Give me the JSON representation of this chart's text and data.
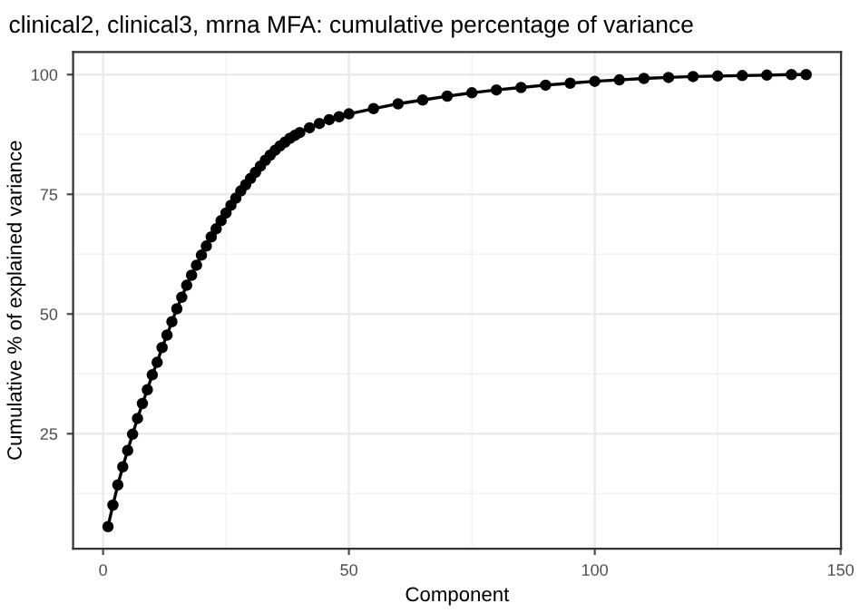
{
  "chart_data": {
    "type": "line",
    "title": "clinical2, clinical3, mrna MFA: cumulative percentage of variance",
    "xlabel": "Component",
    "ylabel": "Cumulative % of explained variance",
    "x": [
      1,
      2,
      3,
      4,
      5,
      6,
      7,
      8,
      9,
      10,
      11,
      12,
      13,
      14,
      15,
      16,
      17,
      18,
      19,
      20,
      21,
      22,
      23,
      24,
      25,
      26,
      27,
      28,
      29,
      30,
      31,
      32,
      33,
      34,
      35,
      36,
      37,
      38,
      39,
      40,
      42,
      44,
      46,
      48,
      50,
      55,
      60,
      65,
      70,
      75,
      80,
      85,
      90,
      95,
      100,
      105,
      110,
      115,
      120,
      125,
      130,
      135,
      140,
      143
    ],
    "series": [
      {
        "color": "#000000",
        "values": [
          5.6,
          10.1,
          14.3,
          18.1,
          21.5,
          24.9,
          28.2,
          31.3,
          34.2,
          37.3,
          39.9,
          43.0,
          45.6,
          48.4,
          51.1,
          53.5,
          56.0,
          58.1,
          60.2,
          62.3,
          64.2,
          66.1,
          67.8,
          69.5,
          71.1,
          72.7,
          74.2,
          75.7,
          77.0,
          78.3,
          79.6,
          80.9,
          82.1,
          83.2,
          84.2,
          85.1,
          85.9,
          86.7,
          87.3,
          87.9,
          88.9,
          89.8,
          90.6,
          91.2,
          91.8,
          92.9,
          93.9,
          94.7,
          95.5,
          96.2,
          96.8,
          97.3,
          97.8,
          98.2,
          98.6,
          98.9,
          99.2,
          99.4,
          99.6,
          99.7,
          99.8,
          99.9,
          100,
          100
        ]
      }
    ],
    "xlim": [
      -6.1,
      150.1
    ],
    "ylim": [
      1,
      104.7
    ],
    "xticks": [
      0,
      50,
      100,
      150
    ],
    "yticks": [
      25,
      50,
      75,
      100
    ],
    "grid": true,
    "marker": "circle",
    "line_style": "solid"
  }
}
